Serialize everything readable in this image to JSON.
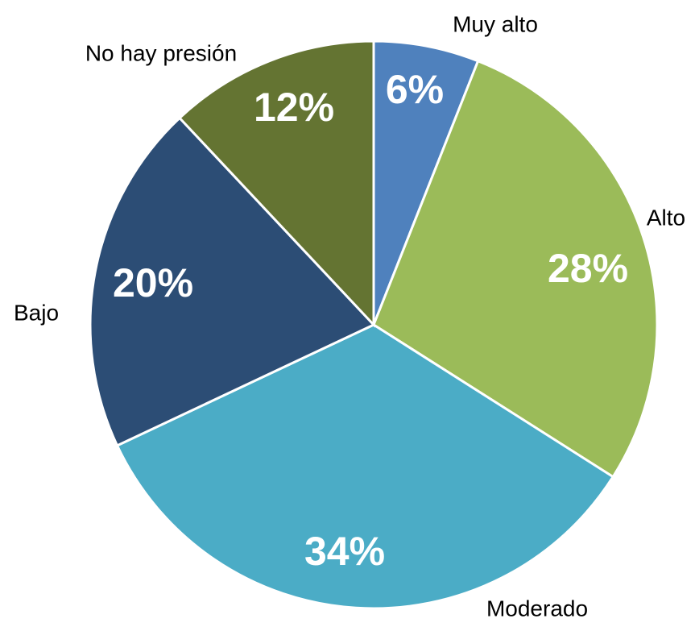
{
  "chart_data": {
    "type": "pie",
    "categories": [
      "Muy alto",
      "Alto",
      "Moderado",
      "Bajo",
      "No hay presión"
    ],
    "values": [
      6,
      28,
      34,
      20,
      12
    ],
    "value_labels": [
      "6%",
      "28%",
      "34%",
      "20%",
      "12%"
    ],
    "colors": [
      "#4f81bd",
      "#9bbb59",
      "#4bacc6",
      "#2c4d75",
      "#647432"
    ]
  }
}
